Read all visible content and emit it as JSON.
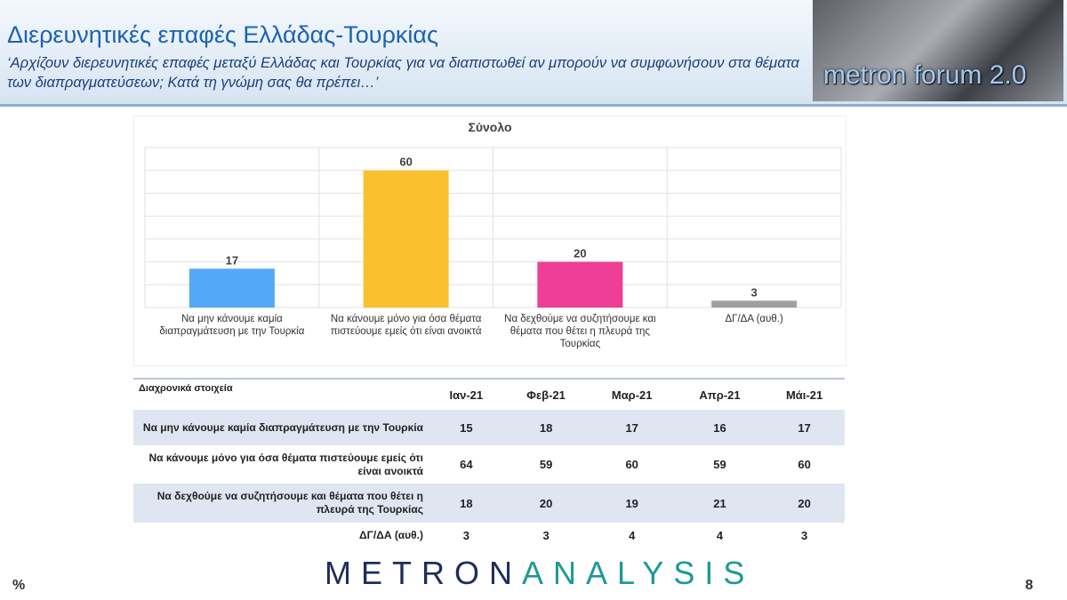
{
  "header": {
    "title": "Διερευνητικές επαφές Ελλάδας-Τουρκίας",
    "subtitle": "‘Αρχίζουν διερευνητικές επαφές μεταξύ Ελλάδας και Τουρκίας για να διαπιστωθεί αν μπορούν να συμφωνήσουν στα θέματα των διαπραγματεύσεων; Κατά τη γνώμη σας θα πρέπει…’",
    "logo": "metron forum 2.0"
  },
  "chart_data": {
    "type": "bar",
    "title": "Σύνολο",
    "categories": [
      "Να μην κάνουμε καμία διαπραγμάτευση με την Τουρκία",
      "Να κάνουμε μόνο για όσα θέματα πιστεύουμε εμείς ότι είναι ανοικτά",
      "Να δεχθούμε να συζητήσουμε και θέματα που θέτει η πλευρά της Τουρκίας",
      "ΔΓ/ΔΑ (αυθ.)"
    ],
    "values": [
      17,
      60,
      20,
      3
    ],
    "colors": [
      "#55a8f5",
      "#fbc02d",
      "#ee3e96",
      "#a0a0a0"
    ],
    "ylim": [
      0,
      70
    ],
    "yticks": [
      0,
      10,
      20,
      30,
      40,
      50,
      60,
      70
    ],
    "grid": true
  },
  "table": {
    "caption": "Διαχρονικά στοιχεία",
    "columns": [
      "Ιαν-21",
      "Φεβ-21",
      "Μαρ-21",
      "Απρ-21",
      "Μάι-21"
    ],
    "rows": [
      {
        "label": "Να μην κάνουμε καμία διαπραγμάτευση με την Τουρκία",
        "values": [
          15,
          18,
          17,
          16,
          17
        ]
      },
      {
        "label": "Να κάνουμε μόνο για όσα θέματα πιστεύουμε εμείς ότι είναι ανοικτά",
        "values": [
          64,
          59,
          60,
          59,
          60
        ]
      },
      {
        "label": "Να δεχθούμε να συζητήσουμε και θέματα που θέτει η πλευρά της Τουρκίας",
        "values": [
          18,
          20,
          19,
          21,
          20
        ]
      },
      {
        "label": "ΔΓ/ΔΑ (αυθ.)",
        "values": [
          3,
          3,
          4,
          4,
          3
        ]
      }
    ]
  },
  "footer": {
    "unit": "%",
    "brand_a": "METRON",
    "brand_b": "ANALYSIS",
    "page": "8"
  }
}
